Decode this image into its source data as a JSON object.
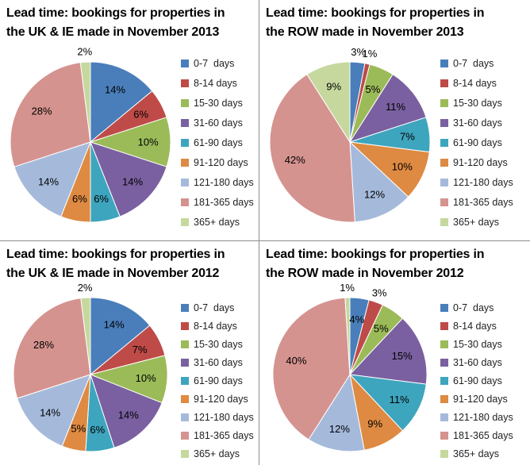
{
  "page": {
    "background": "#ffffff",
    "divider_color": "#8c8c8c"
  },
  "chart_data": [
    {
      "type": "pie",
      "title": "Lead time: bookings for properties in the UK & IE made in November 2013",
      "title_lines": [
        "Lead time: bookings for properties in",
        "the UK & IE made in November 2013"
      ],
      "categories": [
        "0-7  days",
        "8-14 days",
        "15-30 days",
        "31-60 days",
        "61-90 days",
        "91-120 days",
        "121-180 days",
        "181-365 days",
        "365+ days"
      ],
      "values": [
        14,
        6,
        10,
        14,
        6,
        6,
        14,
        28,
        2
      ],
      "colors": [
        "#4A7EBB",
        "#BE4B48",
        "#9BBB59",
        "#7A60A0",
        "#3EA5BE",
        "#DE8A42",
        "#A5BADB",
        "#D5938F",
        "#C6D89E"
      ],
      "label_format": "percent",
      "legend_position": "right",
      "start_angle_deg": 0,
      "direction": "clockwise",
      "outside_label_threshold_pct": 3
    },
    {
      "type": "pie",
      "title": "Lead time: bookings for properties in the ROW made in November 2013",
      "title_lines": [
        "Lead time: bookings for properties in",
        "the ROW made in November 2013"
      ],
      "categories": [
        "0-7  days",
        "8-14 days",
        "15-30 days",
        "31-60 days",
        "61-90 days",
        "91-120 days",
        "121-180 days",
        "181-365 days",
        "365+ days"
      ],
      "values": [
        3,
        1,
        5,
        11,
        7,
        10,
        12,
        42,
        9
      ],
      "colors": [
        "#4A7EBB",
        "#BE4B48",
        "#9BBB59",
        "#7A60A0",
        "#3EA5BE",
        "#DE8A42",
        "#A5BADB",
        "#D5938F",
        "#C6D89E"
      ],
      "label_format": "percent",
      "legend_position": "right",
      "start_angle_deg": 0,
      "direction": "clockwise",
      "outside_label_threshold_pct": 3
    },
    {
      "type": "pie",
      "title": "Lead time: bookings for properties in the UK & IE made in November 2012",
      "title_lines": [
        "Lead time: bookings for properties in",
        "the UK & IE made in November 2012"
      ],
      "categories": [
        "0-7  days",
        "8-14 days",
        "15-30 days",
        "31-60 days",
        "61-90 days",
        "91-120 days",
        "121-180 days",
        "181-365 days",
        "365+ days"
      ],
      "values": [
        14,
        7,
        10,
        14,
        6,
        5,
        14,
        28,
        2
      ],
      "colors": [
        "#4A7EBB",
        "#BE4B48",
        "#9BBB59",
        "#7A60A0",
        "#3EA5BE",
        "#DE8A42",
        "#A5BADB",
        "#D5938F",
        "#C6D89E"
      ],
      "label_format": "percent",
      "legend_position": "right",
      "start_angle_deg": 0,
      "direction": "clockwise",
      "outside_label_threshold_pct": 3
    },
    {
      "type": "pie",
      "title": "Lead time: bookings for properties in the ROW made in November 2012",
      "title_lines": [
        "Lead time: bookings for properties in",
        "the ROW made in November 2012"
      ],
      "categories": [
        "0-7  days",
        "8-14 days",
        "15-30 days",
        "31-60 days",
        "61-90 days",
        "91-120 days",
        "121-180 days",
        "181-365 days",
        "365+ days"
      ],
      "values": [
        4,
        3,
        5,
        15,
        11,
        9,
        12,
        40,
        1
      ],
      "colors": [
        "#4A7EBB",
        "#BE4B48",
        "#9BBB59",
        "#7A60A0",
        "#3EA5BE",
        "#DE8A42",
        "#A5BADB",
        "#D5938F",
        "#C6D89E"
      ],
      "label_format": "percent",
      "legend_position": "right",
      "start_angle_deg": 0,
      "direction": "clockwise",
      "outside_label_threshold_pct": 3
    }
  ]
}
